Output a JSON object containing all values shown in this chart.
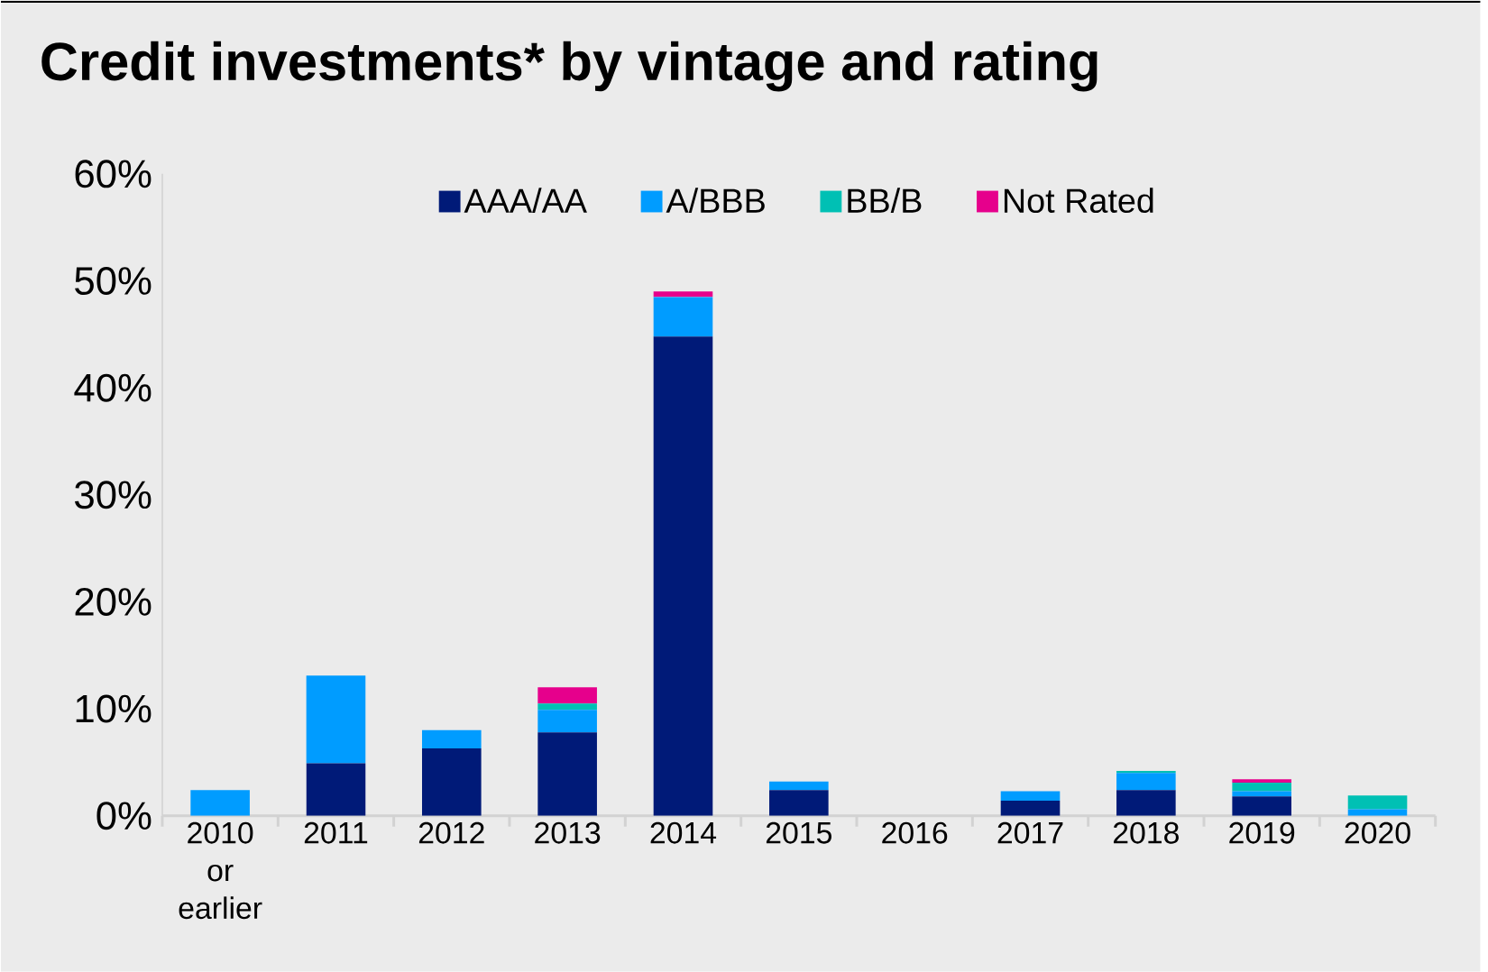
{
  "chart_data": {
    "type": "bar",
    "title": "Credit investments* by vintage and rating",
    "stacked": true,
    "categories": [
      "2010 or earlier",
      "2011",
      "2012",
      "2013",
      "2014",
      "2015",
      "2016",
      "2017",
      "2018",
      "2019",
      "2020"
    ],
    "series": [
      {
        "name": "AAA/AA",
        "color": "#001a78",
        "values": [
          0,
          4.9,
          6.3,
          7.8,
          44.8,
          2.4,
          0,
          1.4,
          2.4,
          1.8,
          0
        ]
      },
      {
        "name": "A/BBB",
        "color": "#009cff",
        "values": [
          2.4,
          8.2,
          1.7,
          2.1,
          3.7,
          0.8,
          0,
          0.9,
          1.6,
          0.5,
          0.6
        ]
      },
      {
        "name": "BB/B",
        "color": "#00c0b4",
        "values": [
          0,
          0,
          0,
          0.6,
          0,
          0,
          0,
          0,
          0.2,
          0.8,
          1.3
        ]
      },
      {
        "name": "Not Rated",
        "color": "#e6008c",
        "values": [
          0,
          0,
          0,
          1.5,
          0.5,
          0,
          0,
          0,
          0,
          0.3,
          0
        ]
      }
    ],
    "ylim": [
      0,
      60
    ],
    "yticks": [
      {
        "value": 0,
        "label": "0%"
      },
      {
        "value": 10,
        "label": "10%"
      },
      {
        "value": 20,
        "label": "20%"
      },
      {
        "value": 30,
        "label": "30%"
      },
      {
        "value": 40,
        "label": "40%"
      },
      {
        "value": 50,
        "label": "50%"
      },
      {
        "value": 60,
        "label": "60%"
      }
    ],
    "legend": "top",
    "grid": false
  }
}
